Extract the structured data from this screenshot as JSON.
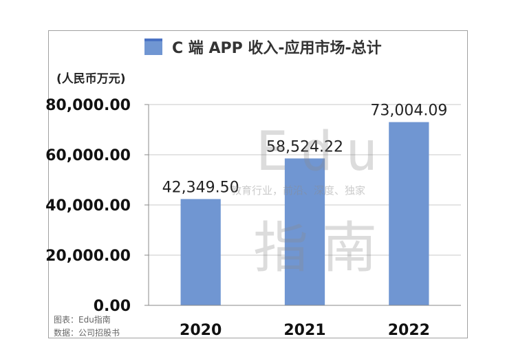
{
  "legend": {
    "label": "C 端 APP 收入-应用市场-总计",
    "swatch_color": "#7096d2"
  },
  "unit_label": "(人民币万元)",
  "source_lines": [
    "图表：Edu指南",
    "数据：公司招股书"
  ],
  "watermark": {
    "top": "Edu",
    "sub": "教育行业，前沿、深度、独家",
    "bottom": "指南"
  },
  "chart_data": {
    "type": "bar",
    "categories": [
      "2020",
      "2021",
      "2022"
    ],
    "series": [
      {
        "name": "C 端 APP 收入-应用市场-总计",
        "values": [
          42349.5,
          58524.22,
          73004.09
        ]
      }
    ],
    "data_labels": [
      "42,349.50",
      "58,524.22",
      "73,004.09"
    ],
    "yticks": [
      "0.00",
      "20,000.00",
      "40,000.00",
      "60,000.00",
      "80,000.00"
    ],
    "ytick_values": [
      0,
      20000,
      40000,
      60000,
      80000
    ],
    "ylim": [
      0,
      80000
    ],
    "grid": true,
    "bar_color": "#7096d2"
  }
}
